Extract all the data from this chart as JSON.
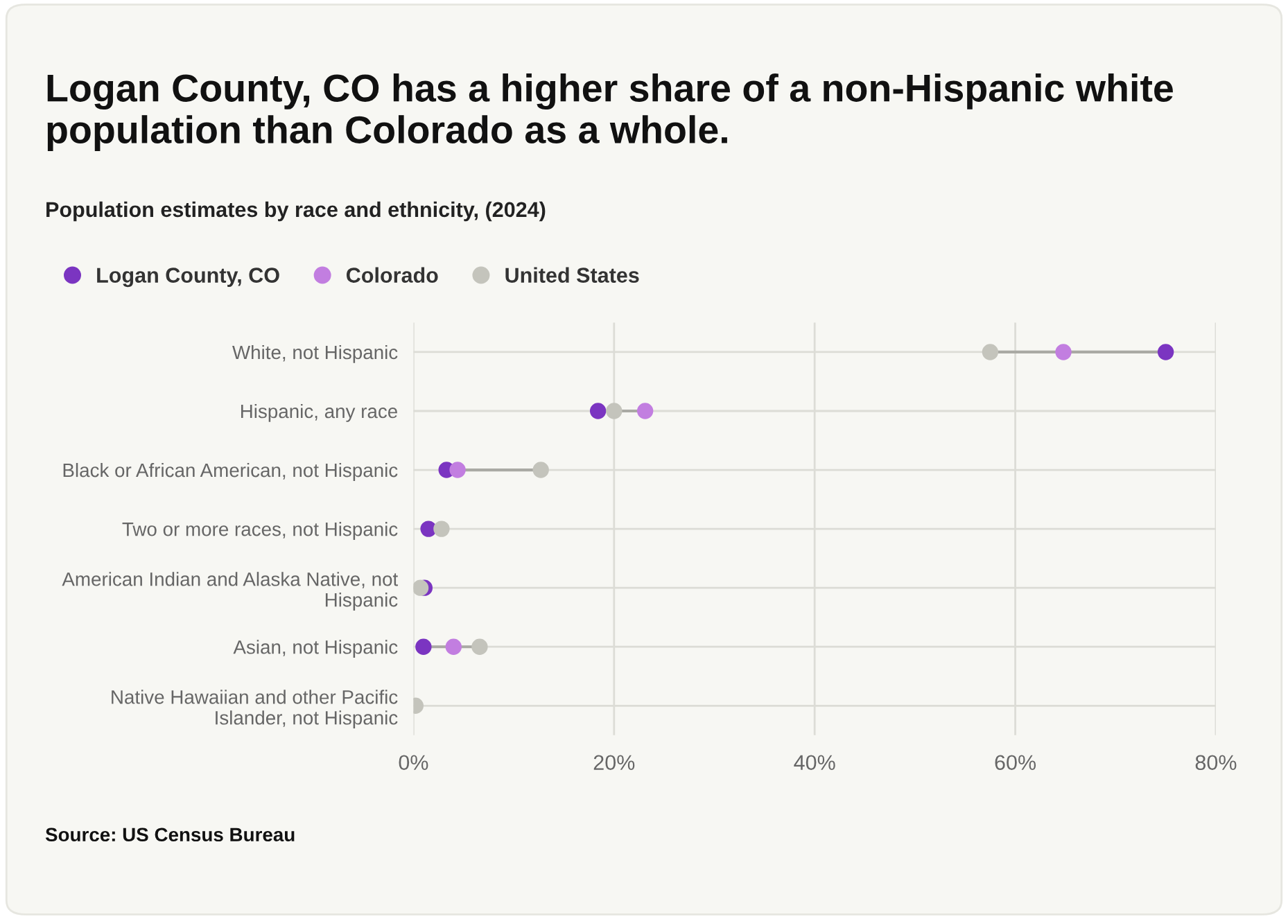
{
  "chart_data": {
    "type": "scatter",
    "orientation": "horizontal",
    "title": "Logan County, CO has a higher share of a non-Hispanic white population than Colorado as a whole.",
    "subtitle": "Population estimates by race and ethnicity, (2024)",
    "categories": [
      "White, not Hispanic",
      "Hispanic, any race",
      "Black or African American, not Hispanic",
      "Two or more races, not Hispanic",
      "American Indian and Alaska Native, not\nHispanic",
      "Asian, not Hispanic",
      "Native Hawaiian and other Pacific\nIslander, not Hispanic"
    ],
    "series": [
      {
        "name": "Logan County, CO",
        "color": "#7b35c1",
        "values": [
          75.0,
          18.4,
          3.3,
          1.5,
          1.1,
          1.0,
          null
        ]
      },
      {
        "name": "Colorado",
        "color": "#c27ee0",
        "values": [
          64.8,
          23.1,
          4.4,
          null,
          null,
          4.0,
          null
        ]
      },
      {
        "name": "United States",
        "color": "#c4c4bc",
        "values": [
          57.5,
          20.0,
          12.7,
          2.8,
          0.7,
          6.6,
          0.2
        ]
      }
    ],
    "xlim": [
      0,
      80
    ],
    "xticks": [
      {
        "value": 0,
        "label": "0%"
      },
      {
        "value": 20,
        "label": "20%"
      },
      {
        "value": 40,
        "label": "40%"
      },
      {
        "value": 60,
        "label": "60%"
      },
      {
        "value": 80,
        "label": "80%"
      }
    ],
    "grid": true,
    "legend": "top left",
    "marker": "circle",
    "annotations": [
      "Source: US Census Bureau"
    ]
  }
}
